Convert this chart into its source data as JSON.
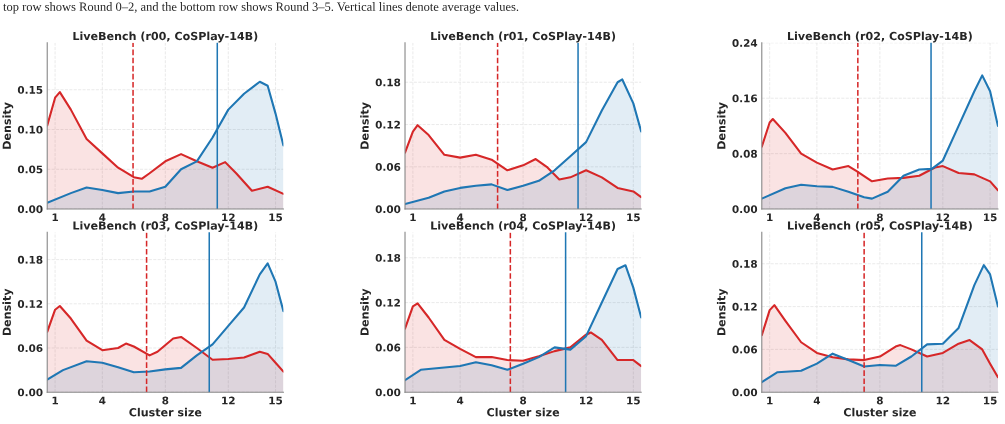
{
  "chart_data": [
    {
      "type": "area",
      "title": "LiveBench (r00, CoSPlay-14B)",
      "ylabel": "Density",
      "annotations": [
        "top row shows Round 0–2, and the bottom row shows Round 3–5. Vertical lines denote average values."
      ],
      "xlim": [
        0.5,
        15.5
      ],
      "xticks": [
        1,
        4,
        8,
        12,
        15
      ],
      "ylim": [
        0,
        0.209
      ],
      "yticks": [
        {
          "value": 0,
          "label": "0.00"
        },
        {
          "value": 0.05,
          "label": "0.05"
        },
        {
          "value": 0.1,
          "label": "0.10"
        },
        {
          "value": 0.15,
          "label": "0.15"
        }
      ],
      "grid": true,
      "legend": false,
      "series": [
        {
          "color": "#d62728",
          "x": [
            0.5,
            1,
            1.3,
            2,
            3,
            4,
            5,
            6,
            6.5,
            7,
            8,
            9,
            10,
            11,
            11.8,
            12.5,
            13.5,
            14.5,
            15.5
          ],
          "values": [
            0.105,
            0.14,
            0.147,
            0.125,
            0.088,
            0.07,
            0.052,
            0.04,
            0.038,
            0.045,
            0.06,
            0.069,
            0.06,
            0.052,
            0.059,
            0.045,
            0.023,
            0.028,
            0.019
          ]
        },
        {
          "color": "#1f77b4",
          "x": [
            0.5,
            2,
            3,
            4,
            5,
            6,
            7,
            8,
            9,
            10,
            11,
            12,
            13,
            14,
            14.5,
            15,
            15.5
          ],
          "values": [
            0.008,
            0.02,
            0.027,
            0.024,
            0.02,
            0.022,
            0.022,
            0.028,
            0.05,
            0.06,
            0.09,
            0.125,
            0.145,
            0.16,
            0.155,
            0.12,
            0.08
          ]
        }
      ],
      "ref_lines": [
        {
          "axis": "x",
          "value": 5.95,
          "color": "#d62728",
          "line_style": "dashed"
        },
        {
          "axis": "x",
          "value": 11.3,
          "color": "#1f77b4",
          "line_style": "solid"
        }
      ]
    },
    {
      "type": "area",
      "title": "LiveBench (r01, CoSPlay-14B)",
      "ylabel": "Density",
      "xlim": [
        0.5,
        15.5
      ],
      "xticks": [
        1,
        4,
        8,
        12,
        15
      ],
      "ylim": [
        0,
        0.236
      ],
      "yticks": [
        {
          "value": 0,
          "label": "0.00"
        },
        {
          "value": 0.06,
          "label": "0.06"
        },
        {
          "value": 0.12,
          "label": "0.12"
        },
        {
          "value": 0.18,
          "label": "0.18"
        }
      ],
      "grid": true,
      "legend": false,
      "series": [
        {
          "color": "#d62728",
          "x": [
            0.5,
            1,
            1.3,
            2,
            3,
            4,
            5,
            6,
            7,
            8,
            8.8,
            9.5,
            10.3,
            11,
            12,
            13,
            14,
            15,
            15.5
          ],
          "values": [
            0.08,
            0.11,
            0.119,
            0.105,
            0.077,
            0.073,
            0.077,
            0.07,
            0.055,
            0.062,
            0.071,
            0.06,
            0.042,
            0.045,
            0.055,
            0.045,
            0.03,
            0.025,
            0.017
          ]
        },
        {
          "color": "#1f77b4",
          "x": [
            0.5,
            2,
            3,
            4,
            5,
            6,
            7,
            8,
            9,
            10,
            11,
            12,
            13,
            14,
            14.3,
            15,
            15.5
          ],
          "values": [
            0.007,
            0.016,
            0.025,
            0.03,
            0.033,
            0.035,
            0.027,
            0.033,
            0.04,
            0.055,
            0.075,
            0.095,
            0.14,
            0.18,
            0.184,
            0.15,
            0.11
          ]
        }
      ],
      "ref_lines": [
        {
          "axis": "x",
          "value": 6.38,
          "color": "#d62728",
          "line_style": "dashed"
        },
        {
          "axis": "x",
          "value": 11.49,
          "color": "#1f77b4",
          "line_style": "solid"
        }
      ]
    },
    {
      "type": "area",
      "title": "LiveBench (r02, CoSPlay-14B)",
      "ylabel": "Density",
      "xlim": [
        0.5,
        15.5
      ],
      "xticks": [
        1,
        4,
        8,
        12,
        15
      ],
      "ylim": [
        0,
        0.24
      ],
      "yticks": [
        {
          "value": 0,
          "label": "0.00"
        },
        {
          "value": 0.08,
          "label": "0.08"
        },
        {
          "value": 0.16,
          "label": "0.16"
        },
        {
          "value": 0.24,
          "label": "0.24"
        }
      ],
      "grid": true,
      "legend": false,
      "series": [
        {
          "color": "#d62728",
          "x": [
            0.5,
            1,
            1.2,
            2,
            3,
            4,
            5,
            6,
            6.5,
            7.5,
            8.5,
            9.5,
            10.5,
            11.5,
            12,
            13,
            14,
            15,
            15.5
          ],
          "values": [
            0.09,
            0.125,
            0.13,
            0.11,
            0.08,
            0.067,
            0.057,
            0.062,
            0.055,
            0.04,
            0.044,
            0.045,
            0.048,
            0.06,
            0.062,
            0.052,
            0.05,
            0.04,
            0.027
          ]
        },
        {
          "color": "#1f77b4",
          "x": [
            0.5,
            2,
            3,
            4,
            5,
            6,
            7,
            7.5,
            8.5,
            9.5,
            10.5,
            11.3,
            12,
            13,
            14,
            14.5,
            15,
            15.5
          ],
          "values": [
            0.015,
            0.03,
            0.035,
            0.033,
            0.032,
            0.025,
            0.017,
            0.015,
            0.025,
            0.048,
            0.057,
            0.058,
            0.07,
            0.12,
            0.17,
            0.193,
            0.17,
            0.12
          ]
        }
      ],
      "ref_lines": [
        {
          "axis": "x",
          "value": 6.6,
          "color": "#d62728",
          "line_style": "dashed"
        },
        {
          "axis": "x",
          "value": 11.25,
          "color": "#1f77b4",
          "line_style": "solid"
        }
      ]
    },
    {
      "type": "area",
      "title": "LiveBench (r03, CoSPlay-14B)",
      "xlabel": "Cluster size",
      "ylabel": "Density",
      "xlim": [
        0.5,
        15.5
      ],
      "xticks": [
        1,
        4,
        8,
        12,
        15
      ],
      "ylim": [
        0,
        0.217
      ],
      "yticks": [
        {
          "value": 0,
          "label": "0.00"
        },
        {
          "value": 0.06,
          "label": "0.06"
        },
        {
          "value": 0.12,
          "label": "0.12"
        },
        {
          "value": 0.18,
          "label": "0.18"
        }
      ],
      "grid": true,
      "legend": false,
      "series": [
        {
          "color": "#d62728",
          "x": [
            0.5,
            1,
            1.3,
            2,
            3,
            4,
            5,
            5.5,
            6,
            7,
            7.5,
            8.5,
            9,
            10,
            11,
            12,
            13,
            14,
            14.5,
            15,
            15.5
          ],
          "values": [
            0.082,
            0.112,
            0.117,
            0.1,
            0.07,
            0.057,
            0.06,
            0.066,
            0.062,
            0.05,
            0.055,
            0.073,
            0.075,
            0.06,
            0.044,
            0.045,
            0.047,
            0.055,
            0.052,
            0.04,
            0.028
          ]
        },
        {
          "color": "#1f77b4",
          "x": [
            0.5,
            1.5,
            3,
            4,
            5,
            6,
            7,
            8,
            9,
            10,
            11,
            12,
            13,
            14,
            14.5,
            15,
            15.5
          ],
          "values": [
            0.017,
            0.03,
            0.042,
            0.04,
            0.034,
            0.027,
            0.028,
            0.031,
            0.033,
            0.05,
            0.065,
            0.09,
            0.115,
            0.16,
            0.175,
            0.15,
            0.11
          ]
        }
      ],
      "ref_lines": [
        {
          "axis": "x",
          "value": 6.81,
          "color": "#d62728",
          "line_style": "dashed"
        },
        {
          "axis": "x",
          "value": 10.79,
          "color": "#1f77b4",
          "line_style": "solid"
        }
      ]
    },
    {
      "type": "area",
      "title": "LiveBench (r04, CoSPlay-14B)",
      "xlabel": "Cluster size",
      "ylabel": "Density",
      "xlim": [
        0.5,
        15.5
      ],
      "xticks": [
        1,
        4,
        8,
        12,
        15
      ],
      "ylim": [
        0,
        0.214
      ],
      "yticks": [
        {
          "value": 0,
          "label": "0.00"
        },
        {
          "value": 0.06,
          "label": "0.06"
        },
        {
          "value": 0.12,
          "label": "0.12"
        },
        {
          "value": 0.18,
          "label": "0.18"
        }
      ],
      "grid": true,
      "legend": false,
      "series": [
        {
          "color": "#d62728",
          "x": [
            0.5,
            1,
            1.3,
            2,
            3,
            4,
            5,
            6,
            7,
            8,
            9,
            10,
            11,
            12,
            12.3,
            13,
            14,
            15,
            15.5
          ],
          "values": [
            0.085,
            0.115,
            0.119,
            0.1,
            0.07,
            0.058,
            0.047,
            0.047,
            0.043,
            0.042,
            0.048,
            0.055,
            0.06,
            0.077,
            0.08,
            0.07,
            0.043,
            0.043,
            0.035
          ]
        },
        {
          "color": "#1f77b4",
          "x": [
            0.5,
            1.5,
            3,
            4,
            5,
            6,
            7,
            8,
            9,
            10,
            11,
            12,
            13,
            14,
            14.5,
            15,
            15.5
          ],
          "values": [
            0.016,
            0.03,
            0.033,
            0.035,
            0.04,
            0.036,
            0.03,
            0.038,
            0.047,
            0.06,
            0.057,
            0.075,
            0.12,
            0.165,
            0.17,
            0.14,
            0.1
          ]
        }
      ],
      "ref_lines": [
        {
          "axis": "x",
          "value": 7.19,
          "color": "#d62728",
          "line_style": "dashed"
        },
        {
          "axis": "x",
          "value": 10.7,
          "color": "#1f77b4",
          "line_style": "solid"
        }
      ]
    },
    {
      "type": "area",
      "title": "LiveBench (r05, CoSPlay-14B)",
      "xlabel": "Cluster size",
      "ylabel": "Density",
      "xlim": [
        0.5,
        15.5
      ],
      "xticks": [
        1,
        4,
        8,
        12,
        15
      ],
      "ylim": [
        0,
        0.224
      ],
      "yticks": [
        {
          "value": 0,
          "label": "0.00"
        },
        {
          "value": 0.06,
          "label": "0.06"
        },
        {
          "value": 0.12,
          "label": "0.12"
        },
        {
          "value": 0.18,
          "label": "0.18"
        }
      ],
      "grid": true,
      "legend": false,
      "series": [
        {
          "color": "#d62728",
          "x": [
            0.5,
            1,
            1.3,
            2,
            3,
            4,
            5,
            6,
            7,
            8,
            9,
            9.3,
            10,
            11,
            12,
            13,
            13.7,
            14.5,
            15,
            15.5
          ],
          "values": [
            0.08,
            0.115,
            0.122,
            0.1,
            0.07,
            0.055,
            0.049,
            0.046,
            0.045,
            0.05,
            0.064,
            0.066,
            0.06,
            0.05,
            0.055,
            0.068,
            0.073,
            0.06,
            0.04,
            0.021
          ]
        },
        {
          "color": "#1f77b4",
          "x": [
            0.5,
            1.5,
            3,
            4,
            5,
            6,
            7,
            8,
            9,
            10,
            11,
            12,
            13,
            14,
            14.6,
            15,
            15.5
          ],
          "values": [
            0.014,
            0.028,
            0.03,
            0.04,
            0.054,
            0.045,
            0.036,
            0.038,
            0.037,
            0.05,
            0.067,
            0.068,
            0.09,
            0.15,
            0.178,
            0.165,
            0.12
          ]
        }
      ],
      "ref_lines": [
        {
          "axis": "x",
          "value": 7.0,
          "color": "#d62728",
          "line_style": "dashed"
        },
        {
          "axis": "x",
          "value": 10.66,
          "color": "#1f77b4",
          "line_style": "solid"
        }
      ]
    }
  ]
}
